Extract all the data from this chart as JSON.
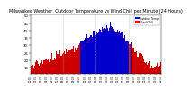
{
  "title": "Milwaukee Weather  Outdoor Temperature vs Wind Chill per Minute (24 Hours)",
  "legend_temp": "Outdoor Temp",
  "legend_wc": "Wind Chill",
  "ylim": [
    11,
    51
  ],
  "yticks": [
    15,
    20,
    25,
    30,
    35,
    40,
    45,
    50
  ],
  "bar_color_pos": "#0000cc",
  "bar_color_neg": "#cc0000",
  "wc_color": "#ff0000",
  "bg_color": "#ffffff",
  "legend_temp_color": "#0000ff",
  "legend_wc_color": "#ff0000",
  "vline_color": "#aaaaaa",
  "title_fontsize": 4.0,
  "tick_fontsize": 2.8,
  "n_minutes": 1440
}
